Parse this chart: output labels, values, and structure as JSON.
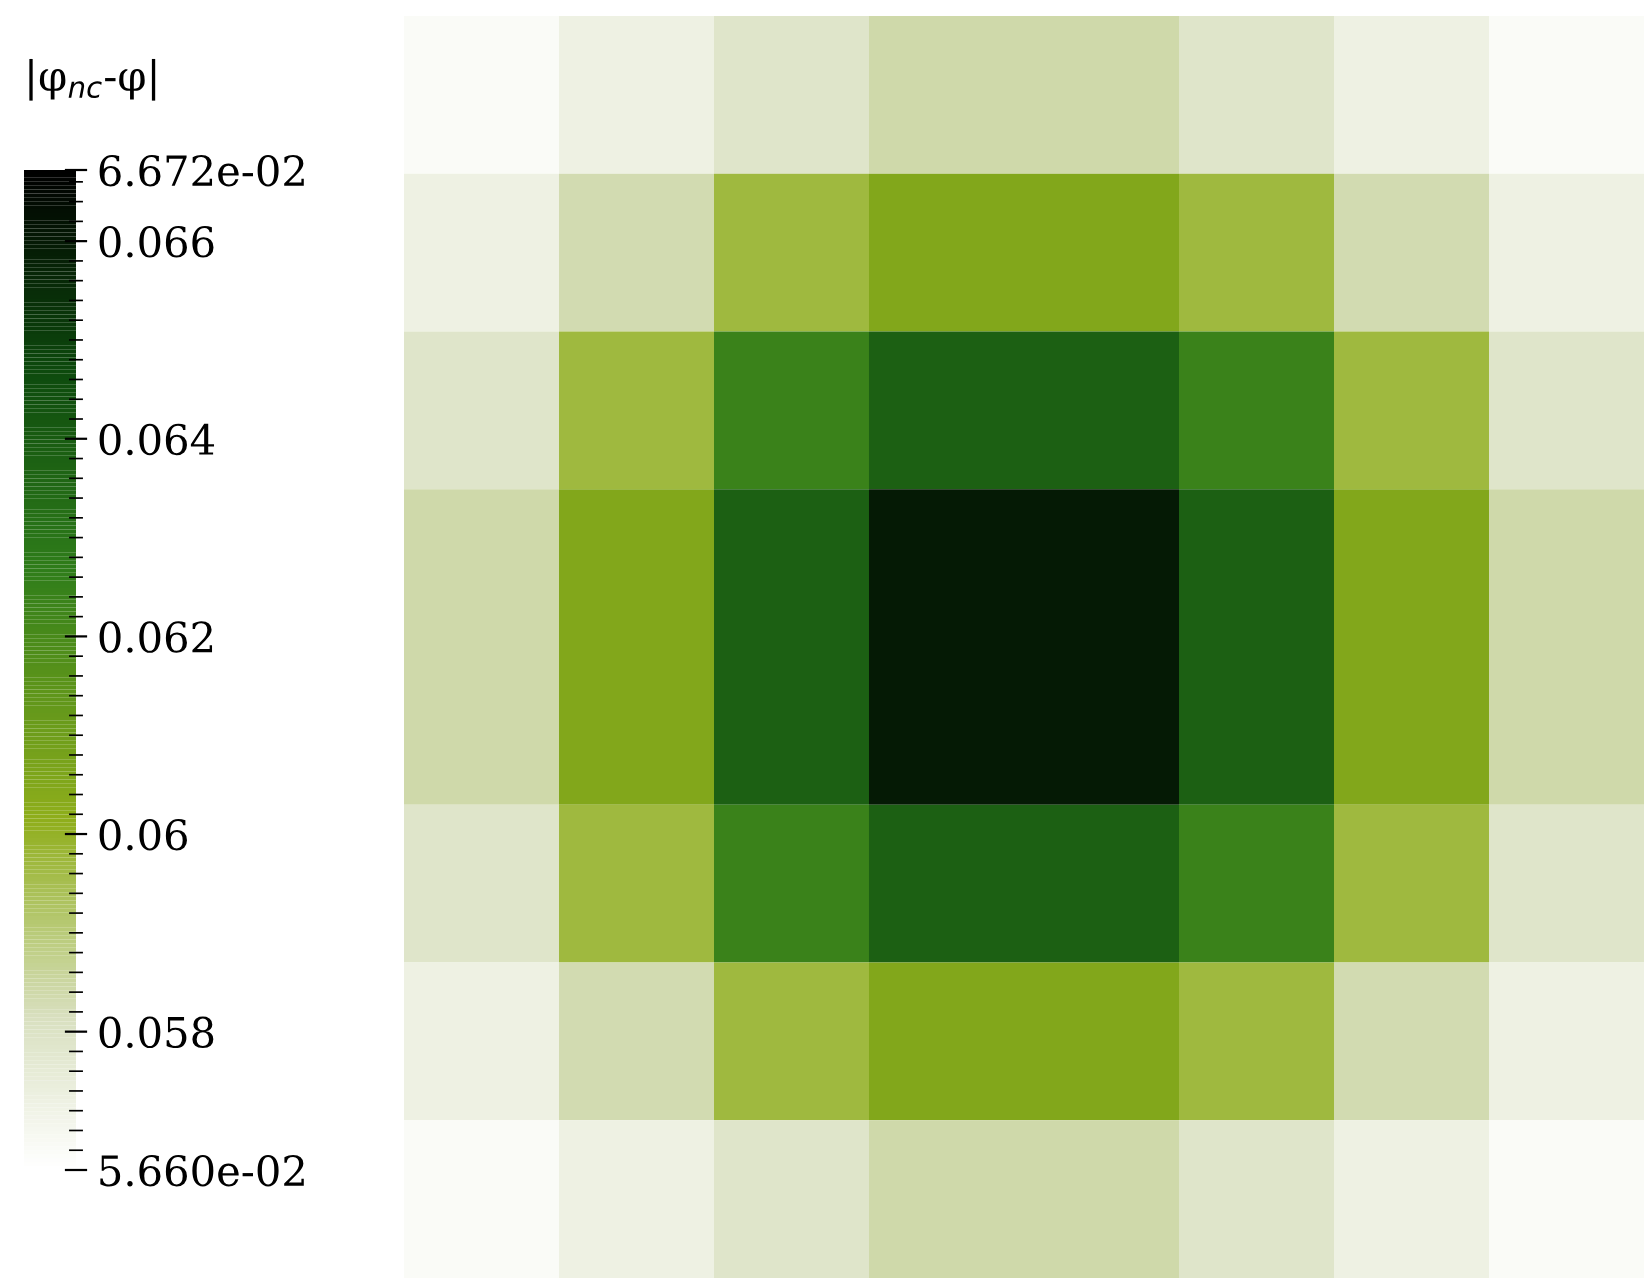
{
  "chart_data": {
    "type": "heatmap",
    "categories": [
      null,
      null,
      null,
      null,
      null,
      null,
      null,
      null
    ],
    "y_categories": [
      null,
      null,
      null,
      null,
      null,
      null,
      null,
      null
    ],
    "cells": [
      [
        0.0568,
        0.0573,
        0.0579,
        0.0584,
        0.0584,
        0.0579,
        0.0573,
        0.0568
      ],
      [
        0.0573,
        0.0583,
        0.0597,
        0.0605,
        0.0605,
        0.0597,
        0.0583,
        0.0573
      ],
      [
        0.0579,
        0.0597,
        0.0624,
        0.0638,
        0.0638,
        0.0624,
        0.0597,
        0.0579
      ],
      [
        0.0584,
        0.0605,
        0.0638,
        0.066,
        0.066,
        0.0638,
        0.0605,
        0.0584
      ],
      [
        0.0584,
        0.0605,
        0.0638,
        0.066,
        0.066,
        0.0638,
        0.0605,
        0.0584
      ],
      [
        0.0579,
        0.0597,
        0.0624,
        0.0638,
        0.0638,
        0.0624,
        0.0597,
        0.0579
      ],
      [
        0.0573,
        0.0583,
        0.0597,
        0.0605,
        0.0605,
        0.0597,
        0.0583,
        0.0573
      ],
      [
        0.0568,
        0.0573,
        0.0579,
        0.0584,
        0.0584,
        0.0579,
        0.0573,
        0.0568
      ]
    ],
    "clabel": "|φ$_{nc}$-φ|",
    "clim": [
      0.0566,
      0.06672
    ],
    "cticks": [
      {
        "value": 0.0566,
        "label": "5.660e-02"
      },
      0.058,
      {
        "value": 0.06,
        "label": "0.06"
      },
      0.062,
      0.064,
      0.066,
      {
        "value": 0.06672,
        "label": "6.672e-02"
      }
    ],
    "tick_labels": false
  }
}
